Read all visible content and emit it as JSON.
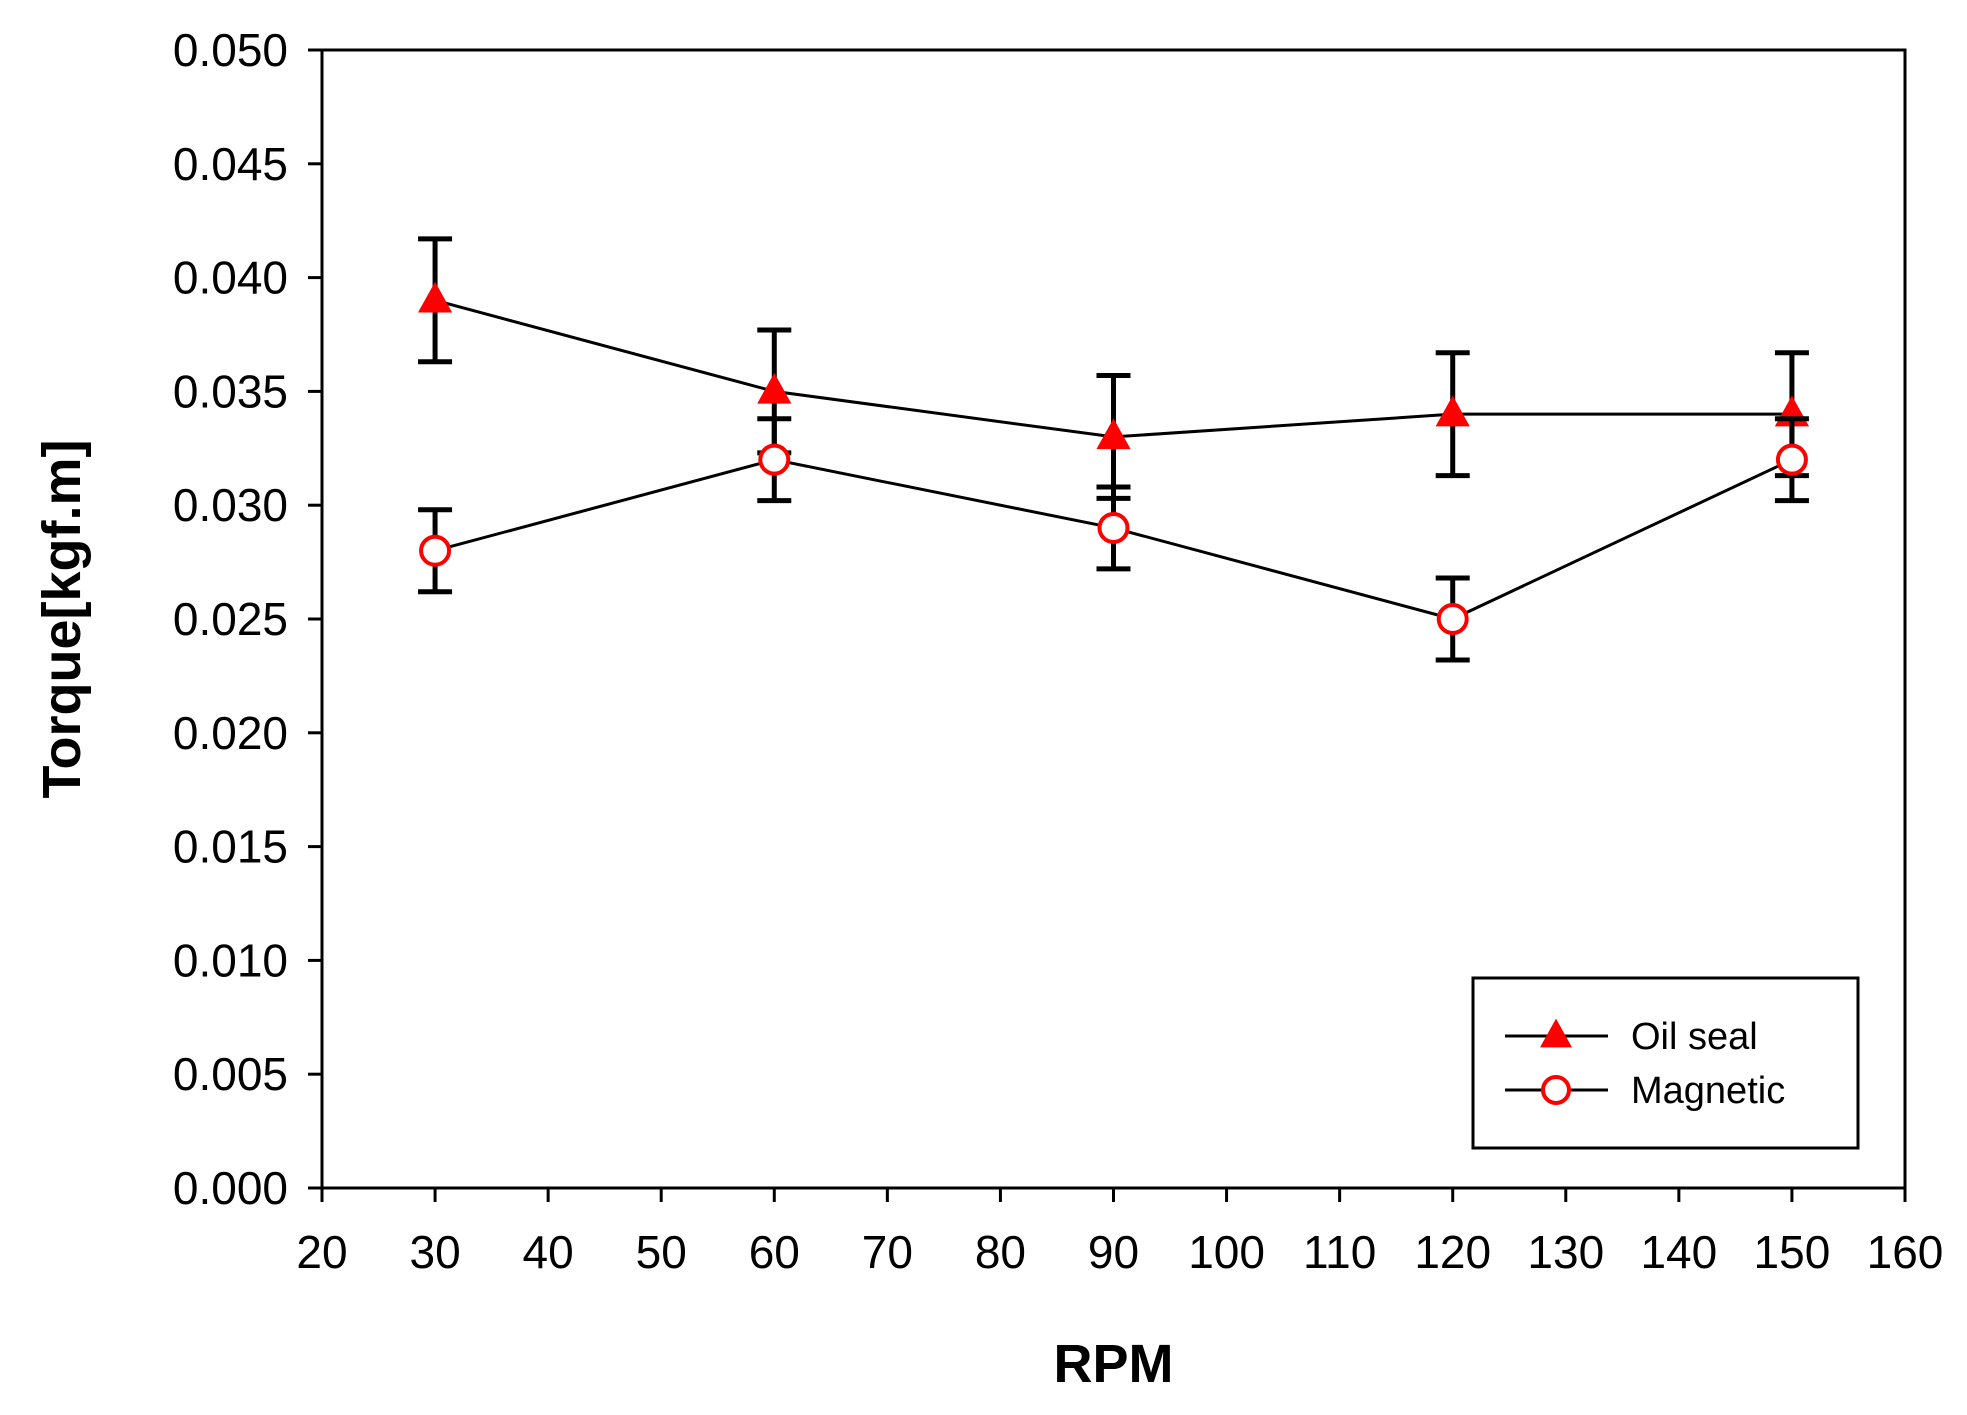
{
  "chart_data": {
    "type": "line",
    "title": "",
    "xlabel": "RPM",
    "ylabel": "Torque[kgf.m]",
    "xlim": [
      20,
      160
    ],
    "ylim": [
      0.0,
      0.05
    ],
    "xticks": [
      20,
      30,
      40,
      50,
      60,
      70,
      80,
      90,
      100,
      110,
      120,
      130,
      140,
      150,
      160
    ],
    "xtick_labels": [
      "20",
      "30",
      "40",
      "50",
      "60",
      "70",
      "80",
      "90",
      "100",
      "110",
      "120",
      "130",
      "140",
      "150",
      "160"
    ],
    "yticks": [
      0.0,
      0.005,
      0.01,
      0.015,
      0.02,
      0.025,
      0.03,
      0.035,
      0.04,
      0.045,
      0.05
    ],
    "ytick_labels": [
      "0.000",
      "0.005",
      "0.010",
      "0.015",
      "0.020",
      "0.025",
      "0.030",
      "0.035",
      "0.040",
      "0.045",
      "0.050"
    ],
    "grid": false,
    "legend_position": "bottom-right",
    "series": [
      {
        "name": "Oil seal",
        "marker": "triangle-filled",
        "color": "#ff0000",
        "line_color": "#000000",
        "x": [
          30,
          60,
          90,
          120,
          150
        ],
        "values": [
          0.039,
          0.035,
          0.033,
          0.034,
          0.034
        ],
        "error": [
          0.0027,
          0.0027,
          0.0027,
          0.0027,
          0.0027
        ]
      },
      {
        "name": "Magnetic",
        "marker": "circle-open",
        "color": "#ff0000",
        "line_color": "#000000",
        "x": [
          30,
          60,
          90,
          120,
          150
        ],
        "values": [
          0.028,
          0.032,
          0.029,
          0.025,
          0.032
        ],
        "error": [
          0.0018,
          0.0018,
          0.0018,
          0.0018,
          0.0018
        ]
      }
    ]
  }
}
